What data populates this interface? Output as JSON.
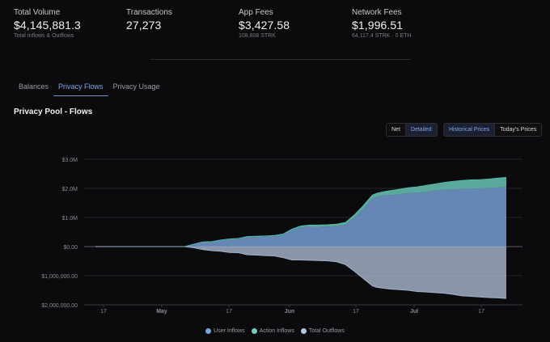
{
  "stats": [
    {
      "label": "Total Volume",
      "value": "$4,145,881.3",
      "sub": "Total Inflows & Outflows"
    },
    {
      "label": "Transactions",
      "value": "27,273",
      "sub": ""
    },
    {
      "label": "App Fees",
      "value": "$3,427.58",
      "sub": "108,808 STRK"
    },
    {
      "label": "Network Fees",
      "value": "$1,996.51",
      "sub": "64,117.4 STRK · 0 ETH"
    }
  ],
  "tabs": [
    {
      "label": "Balances",
      "active": false
    },
    {
      "label": "Privacy Flows",
      "active": true
    },
    {
      "label": "Privacy Usage",
      "active": false
    }
  ],
  "section_title": "Privacy Pool - Flows",
  "view_toggle": {
    "net": "Net",
    "detailed": "Detailed",
    "selected": "Detailed"
  },
  "price_toggle": {
    "historical": "Historical Prices",
    "today": "Today's Prices",
    "selected": "Historical Prices"
  },
  "colors": {
    "user_inflows": "#7aa6e0",
    "action_inflows": "#6fcfc2",
    "total_outflows": "#b6c6dc",
    "accent": "#7fa7e6"
  },
  "chart_data": {
    "type": "area",
    "x_tick_labels": [
      "17",
      "May",
      "17",
      "Jun",
      "17",
      "Jul",
      "17"
    ],
    "y_tick_labels": [
      "$3.0M",
      "$2.0M",
      "$1.0M",
      "$0.00",
      "$1,000,000.00",
      "$2,000,000.00"
    ],
    "ylim": [
      -2000000,
      3000000
    ],
    "x": [
      0,
      10,
      20,
      22,
      24,
      26,
      28,
      30,
      32,
      34,
      36,
      38,
      40,
      42,
      44,
      46,
      48,
      50,
      52,
      54,
      56,
      58,
      60,
      62,
      63,
      64,
      65,
      66,
      68,
      70,
      72,
      74,
      76,
      78,
      80,
      82,
      84,
      86,
      88,
      90,
      92
    ],
    "series": [
      {
        "name": "User Inflows",
        "values": [
          0,
          0,
          0,
          80000,
          150000,
          160000,
          210000,
          240000,
          260000,
          320000,
          330000,
          340000,
          350000,
          400000,
          560000,
          660000,
          680000,
          680000,
          690000,
          700000,
          750000,
          1000000,
          1300000,
          1650000,
          1710000,
          1740000,
          1760000,
          1770000,
          1800000,
          1830000,
          1850000,
          1880000,
          1920000,
          1950000,
          1970000,
          1980000,
          1990000,
          2000000,
          2010000,
          2030000,
          2050000
        ]
      },
      {
        "name": "Action Inflows",
        "values": [
          0,
          0,
          0,
          5000,
          10000,
          10000,
          15000,
          20000,
          20000,
          25000,
          25000,
          25000,
          30000,
          30000,
          40000,
          50000,
          60000,
          60000,
          60000,
          70000,
          80000,
          90000,
          110000,
          120000,
          120000,
          130000,
          140000,
          150000,
          170000,
          190000,
          200000,
          220000,
          230000,
          250000,
          270000,
          290000,
          300000,
          300000,
          310000,
          320000,
          330000
        ]
      },
      {
        "name": "Total Outflows",
        "values": [
          0,
          0,
          0,
          -40000,
          -100000,
          -140000,
          -160000,
          -200000,
          -210000,
          -280000,
          -290000,
          -310000,
          -320000,
          -380000,
          -460000,
          -460000,
          -470000,
          -480000,
          -490000,
          -520000,
          -620000,
          -850000,
          -1100000,
          -1350000,
          -1400000,
          -1420000,
          -1440000,
          -1460000,
          -1480000,
          -1500000,
          -1540000,
          -1560000,
          -1580000,
          -1600000,
          -1640000,
          -1690000,
          -1710000,
          -1730000,
          -1750000,
          -1760000,
          -1780000
        ]
      }
    ],
    "legend_placement": "bottom",
    "grid": true
  },
  "legend": [
    "User Inflows",
    "Action Inflows",
    "Total Outflows"
  ]
}
